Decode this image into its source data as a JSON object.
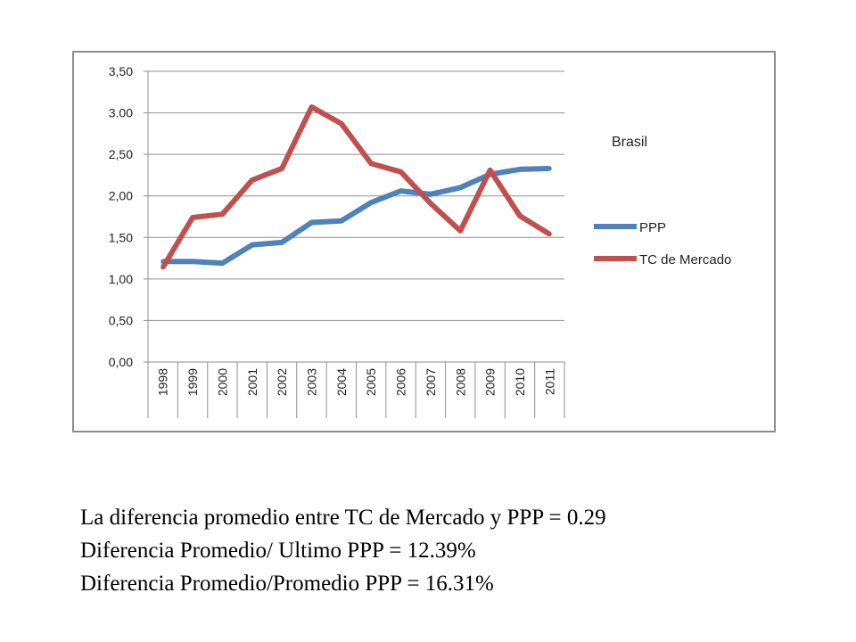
{
  "chart_data": {
    "type": "line",
    "title": "Brasil",
    "categories": [
      "1998",
      "1999",
      "2000",
      "2001",
      "2002",
      "2003",
      "2004",
      "2005",
      "2006",
      "2007",
      "2008",
      "2009",
      "2010",
      "2011"
    ],
    "y_tick_labels": [
      "0,00",
      "0,50",
      "1,00",
      "1,50",
      "2,00",
      "2,50",
      "3.00",
      "3,50"
    ],
    "ylim": [
      0,
      3.5
    ],
    "grid": true,
    "legend_position": "right",
    "series": [
      {
        "name": "PPP",
        "color": "#4f81bd",
        "values": [
          1.21,
          1.21,
          1.19,
          1.41,
          1.44,
          1.68,
          1.7,
          1.92,
          2.06,
          2.02,
          2.1,
          2.26,
          2.32,
          2.33
        ]
      },
      {
        "name": "TC de Mercado",
        "color": "#c0504d",
        "values": [
          1.14,
          1.74,
          1.78,
          2.19,
          2.33,
          3.07,
          2.87,
          2.39,
          2.29,
          1.91,
          1.58,
          2.31,
          1.76,
          1.54
        ]
      }
    ]
  },
  "notes": [
    "La diferencia promedio entre TC de Mercado y PPP = 0.29",
    "Diferencia Promedio/ Ultimo PPP = 12.39%",
    "Diferencia Promedio/Promedio PPP = 16.31%"
  ]
}
